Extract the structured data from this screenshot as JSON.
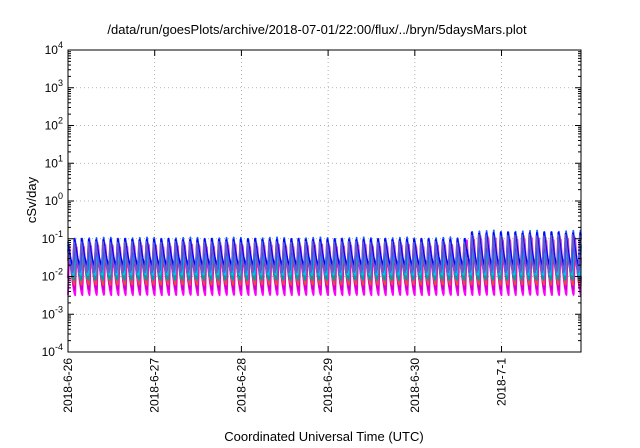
{
  "chart_data": {
    "type": "line",
    "title": "/data/run/goesPlots/archive/2018-07-01/22:00/flux/../bryn/5daysMars.plot",
    "xlabel": "Coordinated Universal Time (UTC)",
    "ylabel": "cSv/day",
    "yscale": "log",
    "ylim": [
      0.0001,
      10000
    ],
    "y_ticks": [
      {
        "exp": "-4",
        "value": 0.0001
      },
      {
        "exp": "-3",
        "value": 0.001
      },
      {
        "exp": "-2",
        "value": 0.01
      },
      {
        "exp": "-1",
        "value": 0.1
      },
      {
        "exp": "0",
        "value": 1
      },
      {
        "exp": "1",
        "value": 10
      },
      {
        "exp": "2",
        "value": 100
      },
      {
        "exp": "3",
        "value": 1000
      },
      {
        "exp": "4",
        "value": 10000
      }
    ],
    "xlim": [
      "2018-06-26 00:00",
      "2018-07-01 22:00"
    ],
    "x_ticks": [
      "2018-6-26",
      "2018-6-27",
      "2018-6-28",
      "2018-6-29",
      "2018-6-30",
      "2018-7-1"
    ],
    "grid": true,
    "legend": "none",
    "series": [
      {
        "color": "#ff00ff",
        "peak": 0.07,
        "trough": 0.0032,
        "phase": 0.0
      },
      {
        "color": "#cc00cc",
        "peak": 0.055,
        "trough": 0.0045,
        "phase": 0.05
      },
      {
        "color": "#ff4040",
        "peak": 0.08,
        "trough": 0.006,
        "phase": 0.1
      },
      {
        "color": "#00a0a0",
        "peak": 0.065,
        "trough": 0.008,
        "phase": 0.15
      },
      {
        "color": "#00c0ff",
        "peak": 0.09,
        "trough": 0.011,
        "phase": 0.2
      },
      {
        "color": "#2060ff",
        "peak": 0.11,
        "trough": 0.015,
        "phase": 0.25
      },
      {
        "color": "#0000ff",
        "peak": 0.1,
        "trough": 0.02,
        "phase": 0.3
      },
      {
        "color": "#6a5acd",
        "peak": 0.085,
        "trough": 0.013,
        "phase": 0.35
      }
    ]
  }
}
